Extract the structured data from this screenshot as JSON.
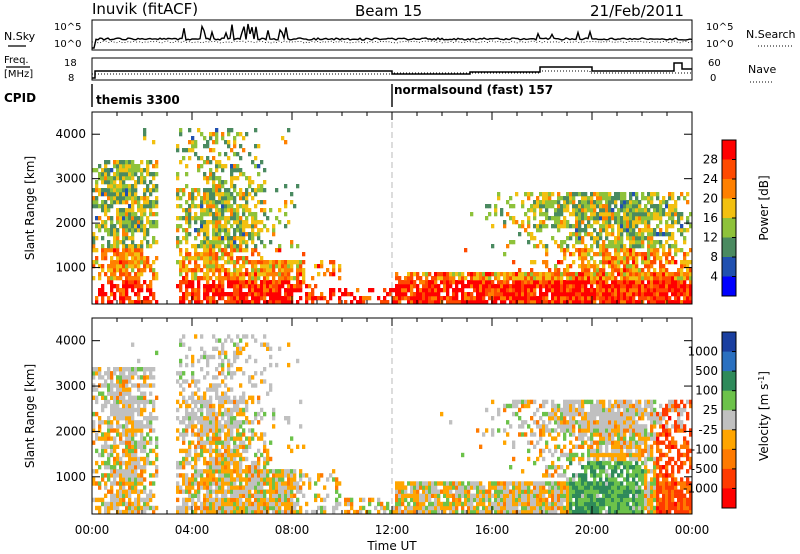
{
  "header": {
    "station": "Inuvik (fitACF)",
    "beam": "Beam 15",
    "date": "21/Feb/2011"
  },
  "top_panels": {
    "nsky_label": "N.Sky",
    "nsearch_label": "N.Search",
    "nsky_ticks": [
      "10^5",
      "10^0"
    ],
    "nsearch_ticks": [
      "10^5",
      "10^0"
    ],
    "freq_label_line1": "Freq.",
    "freq_label_line2": "[MHz]",
    "freq_ticks": [
      "18",
      "8"
    ],
    "nave_label": "Nave",
    "nave_ticks": [
      "60",
      "0"
    ],
    "cpid_label": "CPID",
    "cpid_segments": [
      {
        "label": "themis 3300",
        "start_hour": 0
      },
      {
        "label": "normalsound (fast) 157",
        "start_hour": 12
      }
    ]
  },
  "chart_data": [
    {
      "type": "heatmap",
      "panel": "power",
      "title": "",
      "xlabel": "Time UT",
      "ylabel": "Slant Range [km]",
      "xlim": [
        0,
        24
      ],
      "ylim": [
        180,
        4500
      ],
      "x_tick_labels": [
        "00:00",
        "04:00",
        "08:00",
        "12:00",
        "16:00",
        "20:00",
        "00:00"
      ],
      "y_ticks": [
        1000,
        2000,
        3000,
        4000
      ],
      "colorbar": {
        "label": "Power [dB]",
        "ticks": [
          "4",
          "8",
          "12",
          "16",
          "20",
          "24",
          "28"
        ],
        "colors": [
          "#0000ff",
          "#2050b0",
          "#4a8a60",
          "#8ec23a",
          "#f2c010",
          "#ff8000",
          "#ff4a00",
          "#ff0000"
        ]
      }
    },
    {
      "type": "heatmap",
      "panel": "velocity",
      "title": "",
      "xlabel": "Time UT",
      "ylabel": "Slant Range [km]",
      "xlim": [
        0,
        24
      ],
      "ylim": [
        180,
        4500
      ],
      "x_tick_labels": [
        "00:00",
        "04:00",
        "08:00",
        "12:00",
        "16:00",
        "20:00",
        "00:00"
      ],
      "y_ticks": [
        1000,
        2000,
        3000,
        4000
      ],
      "colorbar": {
        "label": "Velocity [m s^-1]",
        "ticks": [
          "1000",
          "500",
          "100",
          "25",
          "-25",
          "-100",
          "-500",
          "-1000"
        ],
        "colors": [
          "#1a3fa0",
          "#2a70c0",
          "#2e8a5a",
          "#6cc24a",
          "#c0c0c0",
          "#ffa500",
          "#ff7a00",
          "#ff3a00",
          "#ff0000"
        ]
      }
    }
  ]
}
